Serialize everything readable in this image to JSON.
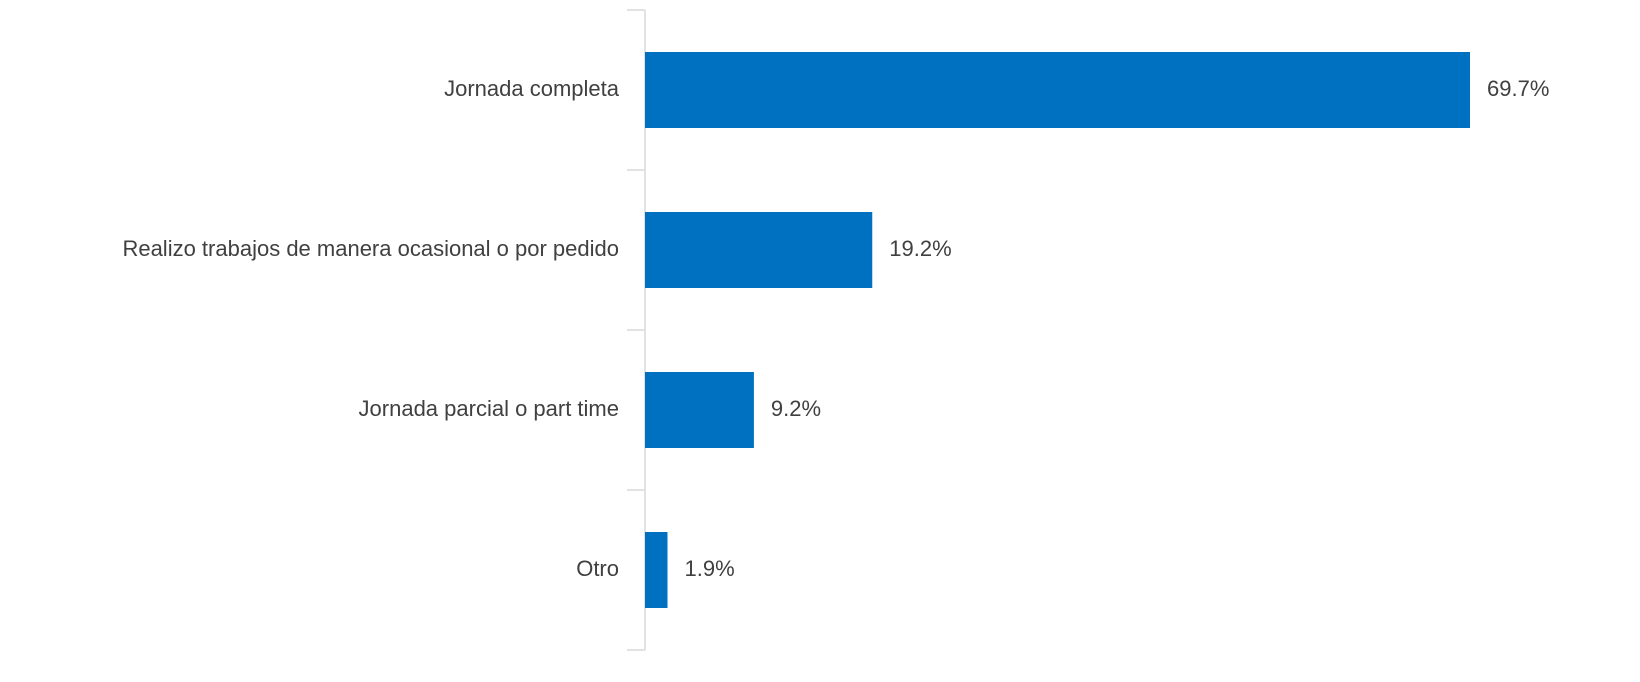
{
  "chart_data": {
    "type": "hbar",
    "categories": [
      "Jornada completa",
      "Realizo trabajos de manera ocasional o por pedido",
      "Jornada parcial o part time",
      "Otro"
    ],
    "values": [
      69.7,
      19.2,
      9.2,
      1.9
    ],
    "value_labels": [
      "69.7%",
      "19.2%",
      "9.2%",
      "1.9%"
    ],
    "color": "#0070c0"
  }
}
